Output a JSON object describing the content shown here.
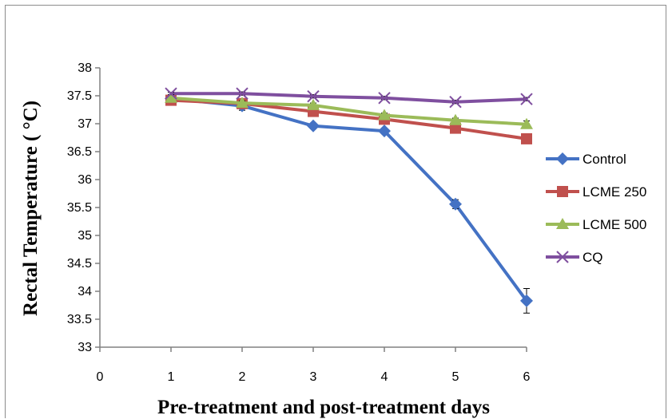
{
  "chart_data": {
    "type": "line",
    "xlabel": "Pre-treatment and post-treatment days",
    "ylabel": "Rectal Temperature ( °C)",
    "xlim": [
      0,
      6
    ],
    "ylim": [
      33,
      38
    ],
    "xticks": [
      "0",
      "1",
      "2",
      "3",
      "4",
      "5",
      "6"
    ],
    "yticks": [
      "33",
      "33.5",
      "34",
      "34.5",
      "35",
      "35.5",
      "36",
      "36.5",
      "37",
      "37.5",
      "38"
    ],
    "grid": false,
    "legend_position": "right",
    "x": [
      1,
      2,
      3,
      4,
      5,
      6
    ],
    "series": [
      {
        "name": "Control",
        "color": "#4472C4",
        "marker": "diamond",
        "values": [
          37.45,
          37.32,
          36.96,
          36.87,
          35.56,
          33.83
        ],
        "errors": [
          0.04,
          0.08,
          0.05,
          0.05,
          0.08,
          0.22
        ]
      },
      {
        "name": "LCME 250",
        "color": "#C0504D",
        "marker": "square",
        "values": [
          37.42,
          37.36,
          37.22,
          37.08,
          36.92,
          36.73
        ],
        "errors": [
          0.03,
          0.04,
          0.04,
          0.04,
          0.08,
          0.06
        ]
      },
      {
        "name": "LCME 500",
        "color": "#9BBB59",
        "marker": "triangle",
        "values": [
          37.46,
          37.37,
          37.33,
          37.15,
          37.06,
          36.99
        ],
        "errors": [
          0.03,
          0.04,
          0.04,
          0.04,
          0.04,
          0.06
        ]
      },
      {
        "name": "CQ",
        "color": "#7F4F9F",
        "marker": "x",
        "values": [
          37.54,
          37.54,
          37.49,
          37.46,
          37.39,
          37.44
        ],
        "errors": [
          0.02,
          0.03,
          0.03,
          0.03,
          0.03,
          0.03
        ]
      }
    ]
  }
}
